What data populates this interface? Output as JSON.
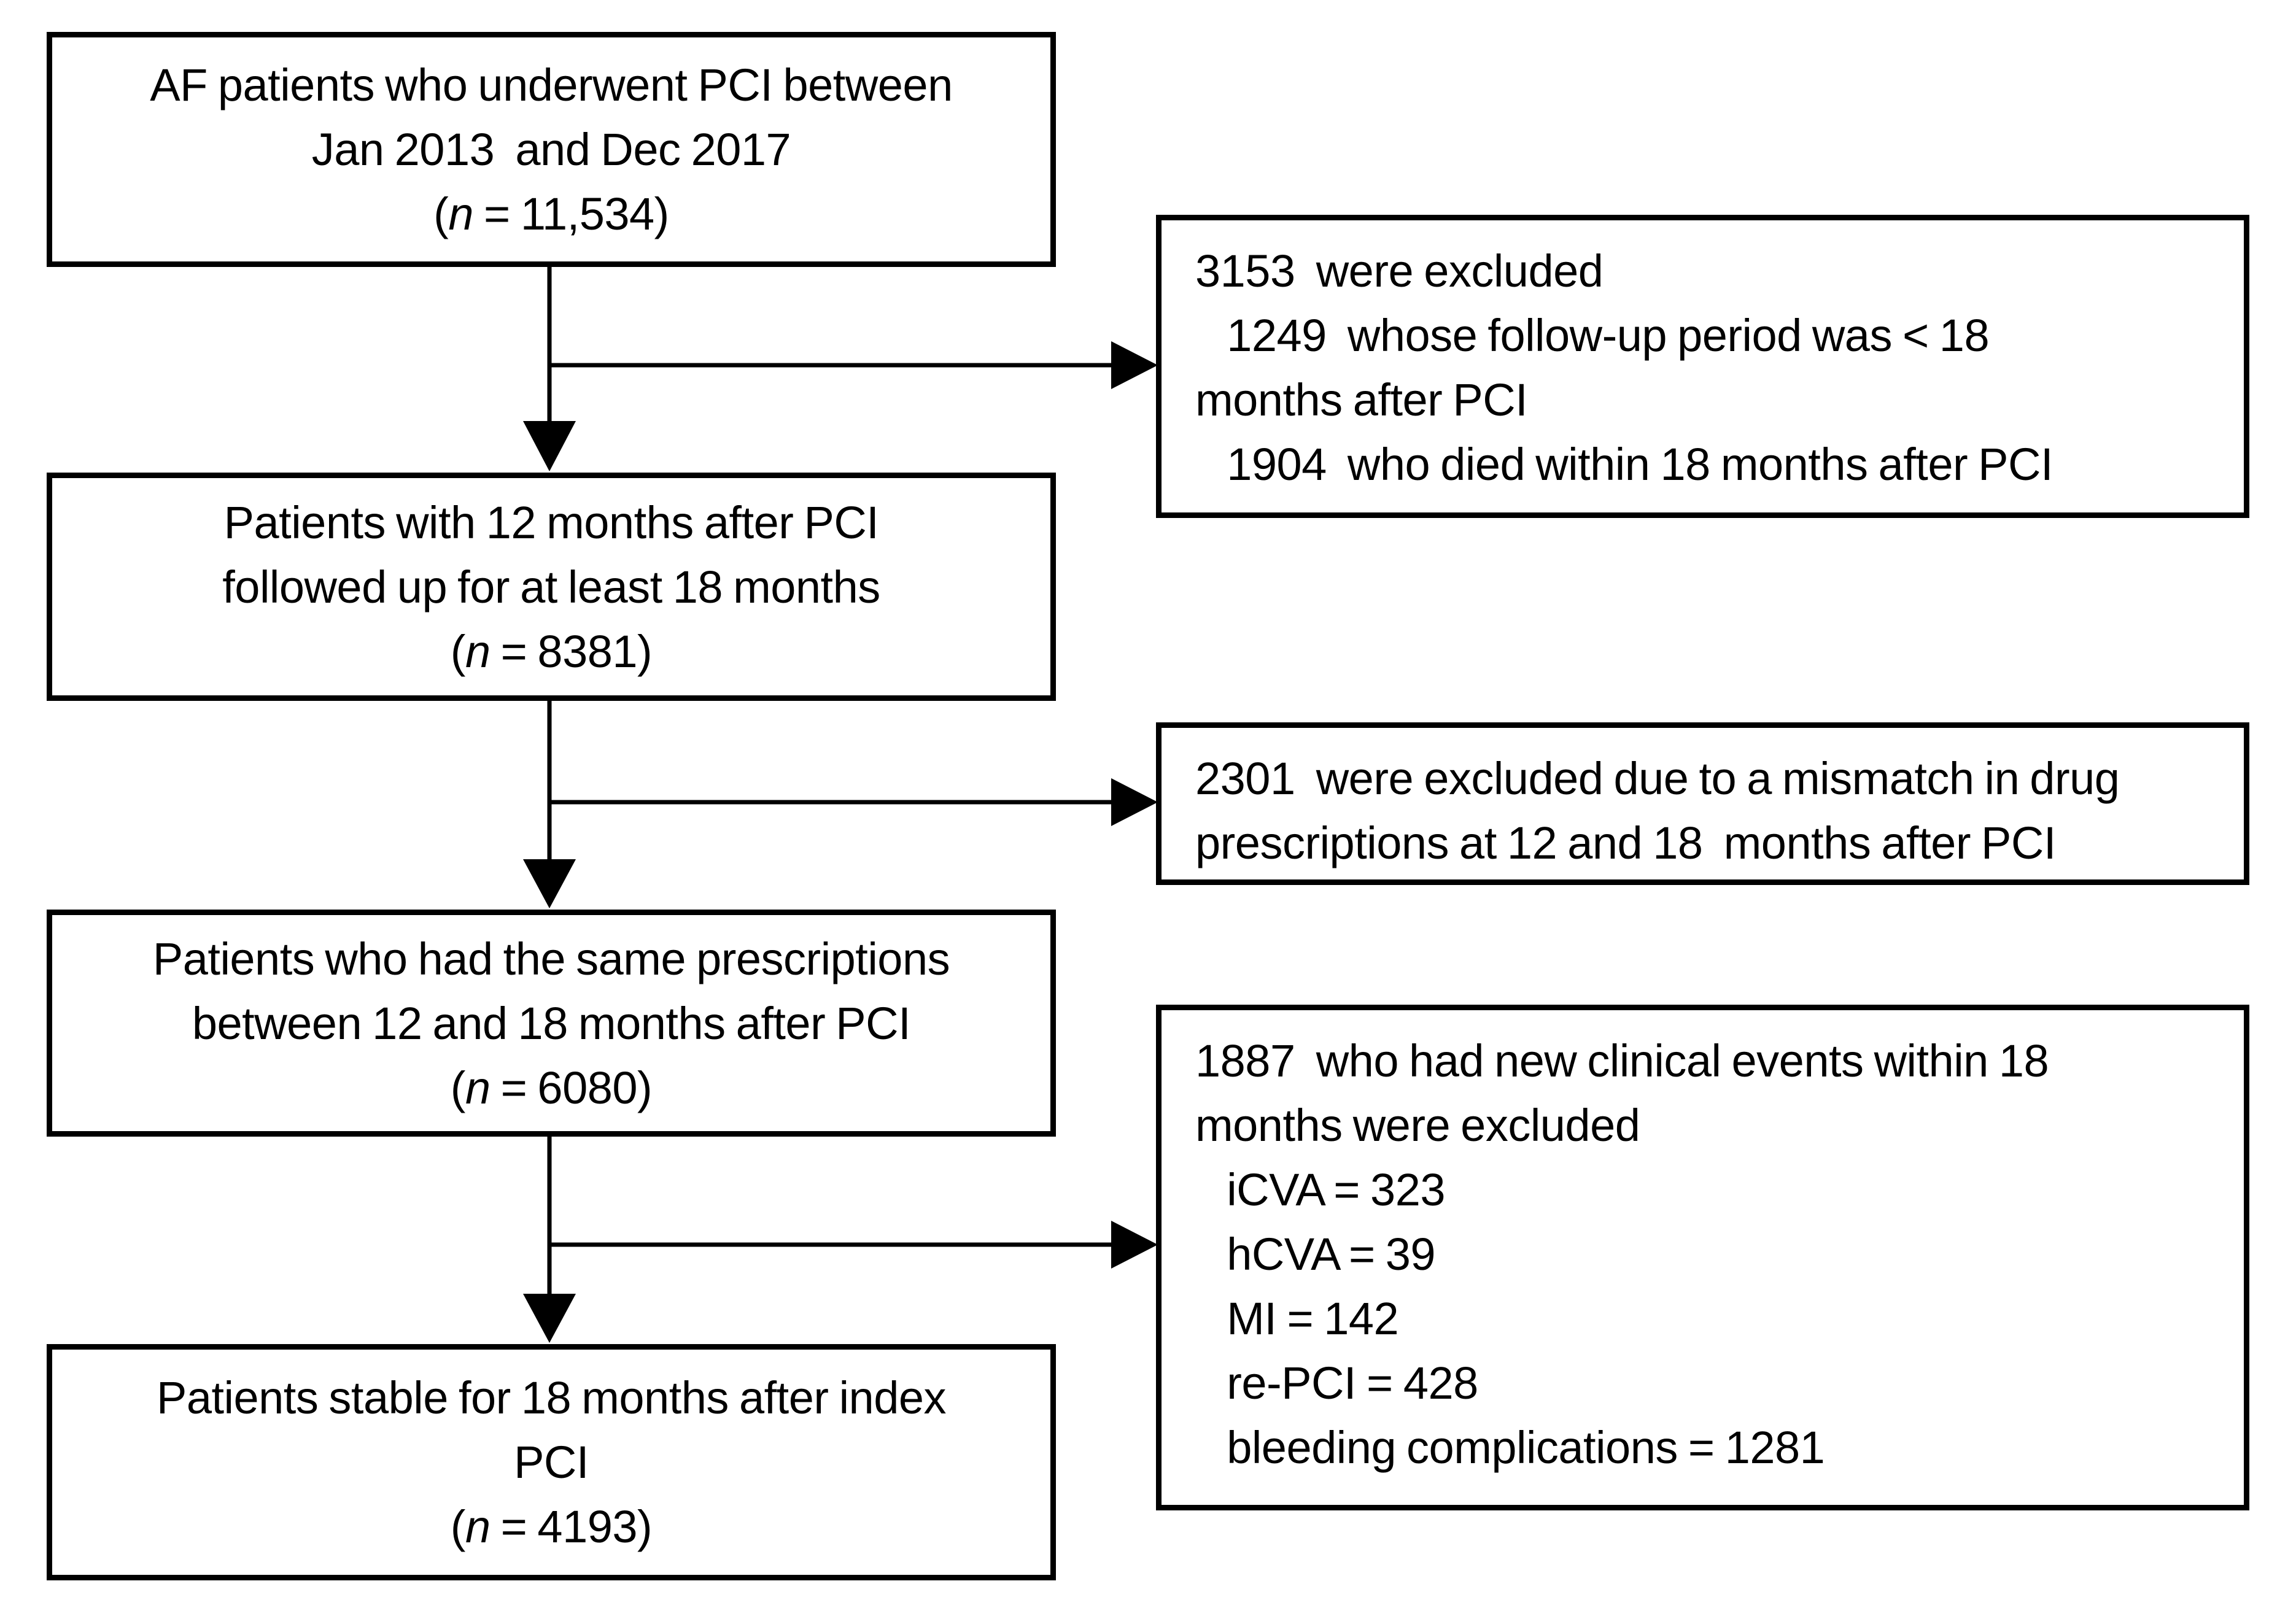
{
  "figure": {
    "background": "#ffffff",
    "box_border_color": "#000000",
    "text_color": "#000000",
    "arrow_color": "#000000",
    "cohort_boxes": [
      {
        "name": "initial-cohort",
        "lines": [
          "AF patients who underwent PCI between",
          "Jan 2013  and Dec 2017",
          "(n = 11,534)"
        ]
      },
      {
        "name": "followed-up-cohort",
        "lines": [
          "Patients with 12 months after PCI",
          "followed up for at least 18 months",
          "(n = 8381)"
        ]
      },
      {
        "name": "same-prescriptions-cohort",
        "lines": [
          "Patients who had the same prescriptions",
          "between 12 and 18 months after PCI",
          "(n = 6080)"
        ]
      },
      {
        "name": "stable-cohort",
        "lines": [
          "Patients stable for 18 months after index",
          "PCI",
          "(n = 4193)"
        ]
      }
    ],
    "exclusion_boxes": [
      {
        "name": "exclusion-short-followup-or-death",
        "lines": [
          "3153  were excluded",
          "   1249  whose follow-up period was < 18",
          "months after PCI",
          "   1904  who died within 18 months after PCI"
        ]
      },
      {
        "name": "exclusion-prescription-mismatch",
        "lines": [
          "2301  were excluded due to a mismatch in drug",
          "prescriptions at 12 and 18  months after PCI"
        ]
      },
      {
        "name": "exclusion-new-clinical-events",
        "lines": [
          "1887  who had new clinical events within 18",
          "months were excluded",
          "   iCVA = 323",
          "   hCVA = 39",
          "   MI = 142",
          "   re-PCI = 428",
          "   bleeding complications = 1281"
        ]
      }
    ]
  }
}
